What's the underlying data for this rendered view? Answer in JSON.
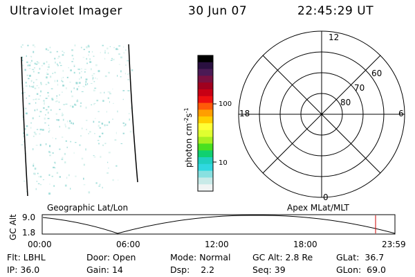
{
  "header": {
    "instrument": "Ultraviolet Imager",
    "date": "30 Jun 07",
    "time": "22:45:29 UT"
  },
  "colorbar": {
    "unit_label": "photon cm",
    "unit_sup1": "-2",
    "unit_mid": "s",
    "unit_sup2": "-1",
    "ticks": [
      "100",
      "10"
    ],
    "colors": [
      "#000000",
      "#2a1040",
      "#4b1a55",
      "#7a1040",
      "#a0001e",
      "#c80014",
      "#ee1010",
      "#ff5a08",
      "#ff9e00",
      "#ffcf00",
      "#ffff36",
      "#e0ff30",
      "#a8f020",
      "#48e020",
      "#10d070",
      "#20d0c0",
      "#30d8e0",
      "#88e0e0",
      "#c8eae8",
      "#f0f4f4"
    ]
  },
  "polar_plot": {
    "mlt_labels": {
      "top": "12",
      "left": "18",
      "right": "6",
      "bottom": "0"
    },
    "lat_labels": [
      "60",
      "70",
      "80"
    ]
  },
  "timeline": {
    "y_axis_label": "GC Alt",
    "y_ticks": [
      "9.0",
      "1.8"
    ],
    "left_title": "Geographic Lat/Lon",
    "right_title": "Apex  MLat/MLT",
    "x_ticks": [
      "00:00",
      "06:00",
      "12:00",
      "18:00",
      "23:59"
    ],
    "current_marker_time": "22:45:29"
  },
  "info": {
    "row1": [
      {
        "label": "Flt:",
        "value": "LBHL"
      },
      {
        "label": "Door:",
        "value": "Open"
      },
      {
        "label": "Mode:",
        "value": "Normal"
      },
      {
        "label": "GC Alt:",
        "value": "2.8 Re"
      },
      {
        "label": "GLat:",
        "value": "36.7"
      }
    ],
    "row2": [
      {
        "label": "IP:",
        "value": "36.0"
      },
      {
        "label": "Gain:",
        "value": "14"
      },
      {
        "label": "Dsp:",
        "value": "2.2"
      },
      {
        "label": "Seq:",
        "value": "39"
      },
      {
        "label": "GLon:",
        "value": "69.0"
      }
    ]
  }
}
